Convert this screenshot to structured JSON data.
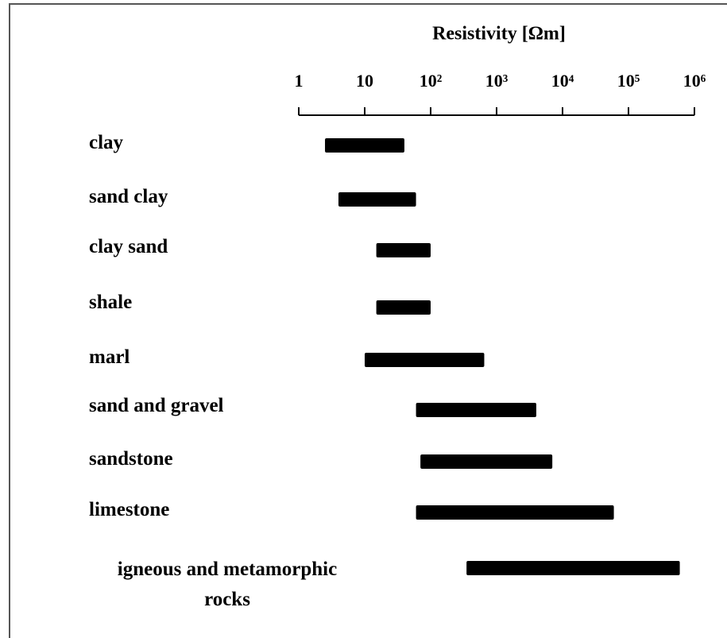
{
  "chart_data": {
    "type": "range_bar",
    "title": "Resistivity [Ωm]",
    "categories": [
      "clay",
      "sand clay",
      "clay sand",
      "shale",
      "marl",
      "sand and gravel",
      "sandstone",
      "limestone",
      "igneous and metamorphic rocks"
    ],
    "values": [
      [
        2.5,
        40
      ],
      [
        4,
        60
      ],
      [
        15,
        100
      ],
      [
        15,
        100
      ],
      [
        10,
        650
      ],
      [
        60,
        4000
      ],
      [
        70,
        7000
      ],
      [
        60,
        60000
      ],
      [
        350,
        600000
      ]
    ],
    "color": "#000000",
    "xlim": [
      1,
      1000000
    ],
    "xscale": "log",
    "xticks": [
      1,
      10,
      {
        "value": 100,
        "label": "10²"
      },
      {
        "value": 1000,
        "label": "10³"
      },
      {
        "value": 10000,
        "label": "10⁴"
      },
      {
        "value": 100000,
        "label": "10⁵"
      },
      {
        "value": 1000000,
        "label": "10⁶"
      }
    ],
    "grid": false
  }
}
